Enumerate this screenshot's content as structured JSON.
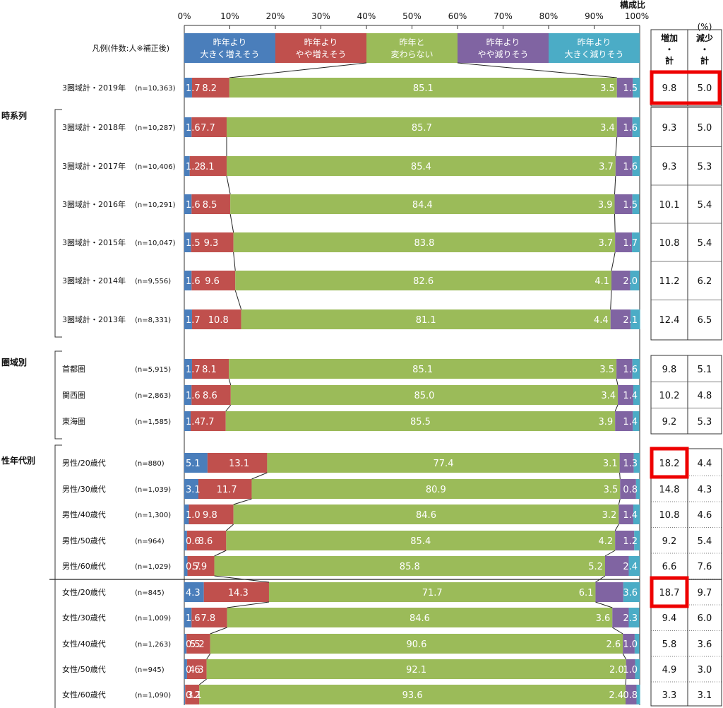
{
  "chart_data": {
    "type": "bar",
    "orientation": "horizontal",
    "stacked": true,
    "title": "構成比",
    "unit": "(%)",
    "legend_label": "凡例(件数:人※補正後)",
    "xlim": [
      0,
      100
    ],
    "xticks": [
      "0%",
      "10%",
      "20%",
      "30%",
      "40%",
      "50%",
      "60%",
      "70%",
      "80%",
      "90%",
      "100%"
    ],
    "series": [
      {
        "name": [
          "昨年より",
          "大きく増えそう"
        ],
        "color": "#4a7ebb"
      },
      {
        "name": [
          "昨年より",
          "やや増えそう"
        ],
        "color": "#c0504d"
      },
      {
        "name": [
          "昨年と",
          "変わらない"
        ],
        "color": "#9bbb59"
      },
      {
        "name": [
          "昨年より",
          "やや減りそう"
        ],
        "color": "#8064a2"
      },
      {
        "name": [
          "昨年より",
          "大きく減りそう"
        ],
        "color": "#4bacc6"
      }
    ],
    "total_headers": [
      [
        "増加",
        "・",
        "計"
      ],
      [
        "減少",
        "・",
        "計"
      ]
    ],
    "groups": [
      {
        "label": "",
        "rows": [
          0
        ]
      },
      {
        "label": "時系列",
        "rows": [
          1,
          2,
          3,
          4,
          5,
          6
        ]
      },
      {
        "label": "圏域別",
        "rows": [
          7,
          8,
          9
        ]
      },
      {
        "label": "性年代別",
        "rows": [
          10,
          11,
          12,
          13,
          14,
          15,
          16,
          17,
          18,
          19
        ]
      }
    ],
    "rows": [
      {
        "label": "3圏域計・2019年",
        "n": "(n=10,363)",
        "values": [
          1.7,
          8.2,
          85.1,
          3.5,
          1.5
        ],
        "labels": [
          "1.7",
          "8.2",
          "85.1",
          "3.5",
          "1.5"
        ],
        "increase": "9.8",
        "decrease": "5.0",
        "hl_inc": true,
        "hl_dec": true
      },
      {
        "label": "3圏域計・2018年",
        "n": "(n=10,287)",
        "values": [
          1.6,
          7.7,
          85.7,
          3.4,
          1.6
        ],
        "labels": [
          "1.6",
          "7.7",
          "85.7",
          "3.4",
          "1.6"
        ],
        "increase": "9.3",
        "decrease": "5.0"
      },
      {
        "label": "3圏域計・2017年",
        "n": "(n=10,406)",
        "values": [
          1.2,
          8.1,
          85.4,
          3.7,
          1.6
        ],
        "labels": [
          "1.2",
          "8.1",
          "85.4",
          "3.7",
          "1.6"
        ],
        "increase": "9.3",
        "decrease": "5.3"
      },
      {
        "label": "3圏域計・2016年",
        "n": "(n=10,291)",
        "values": [
          1.6,
          8.5,
          84.4,
          3.9,
          1.5
        ],
        "labels": [
          "1.6",
          "8.5",
          "84.4",
          "3.9",
          "1.5"
        ],
        "increase": "10.1",
        "decrease": "5.4"
      },
      {
        "label": "3圏域計・2015年",
        "n": "(n=10,047)",
        "values": [
          1.5,
          9.3,
          83.8,
          3.7,
          1.7
        ],
        "labels": [
          "1.5",
          "9.3",
          "83.8",
          "3.7",
          "1.7"
        ],
        "increase": "10.8",
        "decrease": "5.4"
      },
      {
        "label": "3圏域計・2014年",
        "n": "(n=9,556)",
        "values": [
          1.6,
          9.6,
          82.6,
          4.1,
          2.0
        ],
        "labels": [
          "1.6",
          "9.6",
          "82.6",
          "4.1",
          "2.0"
        ],
        "increase": "11.2",
        "decrease": "6.2"
      },
      {
        "label": "3圏域計・2013年",
        "n": "(n=8,331)",
        "values": [
          1.7,
          10.8,
          81.1,
          4.4,
          2.1
        ],
        "labels": [
          "1.7",
          "10.8",
          "81.1",
          "4.4",
          "2.1"
        ],
        "increase": "12.4",
        "decrease": "6.5"
      },
      {
        "label": "首都圏",
        "n": "(n=5,915)",
        "values": [
          1.7,
          8.1,
          85.1,
          3.5,
          1.6
        ],
        "labels": [
          "1.7",
          "8.1",
          "85.1",
          "3.5",
          "1.6"
        ],
        "increase": "9.8",
        "decrease": "5.1"
      },
      {
        "label": "関西圏",
        "n": "(n=2,863)",
        "values": [
          1.6,
          8.6,
          85.0,
          3.4,
          1.4
        ],
        "labels": [
          "1.6",
          "8.6",
          "85.0",
          "3.4",
          "1.4"
        ],
        "increase": "10.2",
        "decrease": "4.8"
      },
      {
        "label": "東海圏",
        "n": "(n=1,585)",
        "values": [
          1.4,
          7.7,
          85.5,
          3.9,
          1.4
        ],
        "labels": [
          "1.4",
          "7.7",
          "85.5",
          "3.9",
          "1.4"
        ],
        "increase": "9.2",
        "decrease": "5.3"
      },
      {
        "label": "男性/20歳代",
        "n": "(n=880)",
        "values": [
          5.1,
          13.1,
          77.4,
          3.1,
          1.3
        ],
        "labels": [
          "5.1",
          "13.1",
          "77.4",
          "3.1",
          "1.3"
        ],
        "increase": "18.2",
        "decrease": "4.4",
        "hl_inc": true
      },
      {
        "label": "男性/30歳代",
        "n": "(n=1,039)",
        "values": [
          3.1,
          11.7,
          80.9,
          3.5,
          0.8
        ],
        "labels": [
          "3.1",
          "11.7",
          "80.9",
          "3.5",
          "0.8"
        ],
        "increase": "14.8",
        "decrease": "4.3"
      },
      {
        "label": "男性/40歳代",
        "n": "(n=1,300)",
        "values": [
          1.0,
          9.8,
          84.6,
          3.2,
          1.4
        ],
        "labels": [
          "1.0",
          "9.8",
          "84.6",
          "3.2",
          "1.4"
        ],
        "increase": "10.8",
        "decrease": "4.6"
      },
      {
        "label": "男性/50歳代",
        "n": "(n=964)",
        "values": [
          0.6,
          8.6,
          85.4,
          4.2,
          1.2
        ],
        "labels": [
          "0.6",
          "8.6",
          "85.4",
          "4.2",
          "1.2"
        ],
        "increase": "9.2",
        "decrease": "5.4"
      },
      {
        "label": "男性/60歳代",
        "n": "(n=1,029)",
        "values": [
          0.7,
          5.9,
          85.8,
          5.2,
          2.4
        ],
        "labels": [
          "0.7",
          "5.9",
          "85.8",
          "5.2",
          "2.4"
        ],
        "increase": "6.6",
        "decrease": "7.6"
      },
      {
        "label": "女性/20歳代",
        "n": "(n=845)",
        "values": [
          4.3,
          14.3,
          71.7,
          6.1,
          3.6
        ],
        "labels": [
          "4.3",
          "14.3",
          "71.7",
          "6.1",
          "3.6"
        ],
        "increase": "18.7",
        "decrease": "9.7",
        "hl_inc": true
      },
      {
        "label": "女性/30歳代",
        "n": "(n=1,009)",
        "values": [
          1.6,
          7.8,
          84.6,
          3.6,
          2.3
        ],
        "labels": [
          "1.6",
          "7.8",
          "84.6",
          "3.6",
          "2.3"
        ],
        "increase": "9.4",
        "decrease": "6.0"
      },
      {
        "label": "女性/40歳代",
        "n": "(n=1,263)",
        "values": [
          0.5,
          5.2,
          90.6,
          2.6,
          1.0
        ],
        "labels": [
          "0.5",
          "5.2",
          "90.6",
          "2.6",
          "1.0"
        ],
        "increase": "5.8",
        "decrease": "3.6"
      },
      {
        "label": "女性/50歳代",
        "n": "(n=945)",
        "values": [
          0.6,
          4.3,
          92.1,
          2.0,
          1.0
        ],
        "labels": [
          "0.6",
          "4.3",
          "92.1",
          "2.0",
          "1.0"
        ],
        "increase": "4.9",
        "decrease": "3.0"
      },
      {
        "label": "女性/60歳代",
        "n": "(n=1,090)",
        "values": [
          0.2,
          3.1,
          93.6,
          2.4,
          0.8
        ],
        "labels": [
          "0.2",
          "3.1",
          "93.6",
          "2.4",
          "0.8"
        ],
        "increase": "3.3",
        "decrease": "3.1"
      }
    ]
  }
}
